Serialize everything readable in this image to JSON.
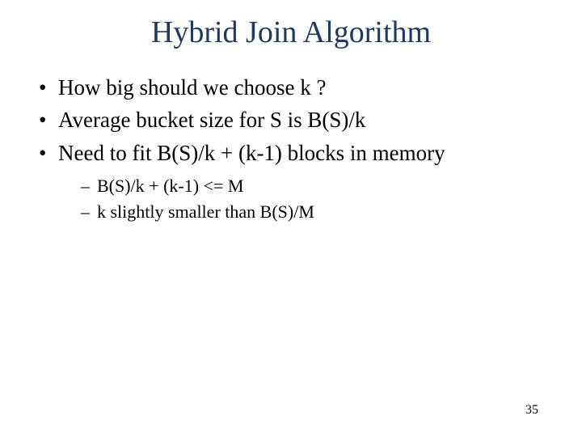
{
  "slide": {
    "title": "Hybrid Join Algorithm",
    "title_color": "#1f3864",
    "title_fontsize": 38,
    "body_fontsize": 27,
    "sub_fontsize": 22,
    "text_color": "#000000",
    "background_color": "#ffffff",
    "bullets": [
      {
        "text": "How big should we choose k ?"
      },
      {
        "text": "Average bucket size for S is B(S)/k"
      },
      {
        "text": "Need to fit B(S)/k + (k-1) blocks in memory"
      }
    ],
    "sub_bullets": [
      {
        "text": "B(S)/k + (k-1) <= M"
      },
      {
        "text": "k slightly smaller than B(S)/M"
      }
    ],
    "page_number": "35"
  }
}
